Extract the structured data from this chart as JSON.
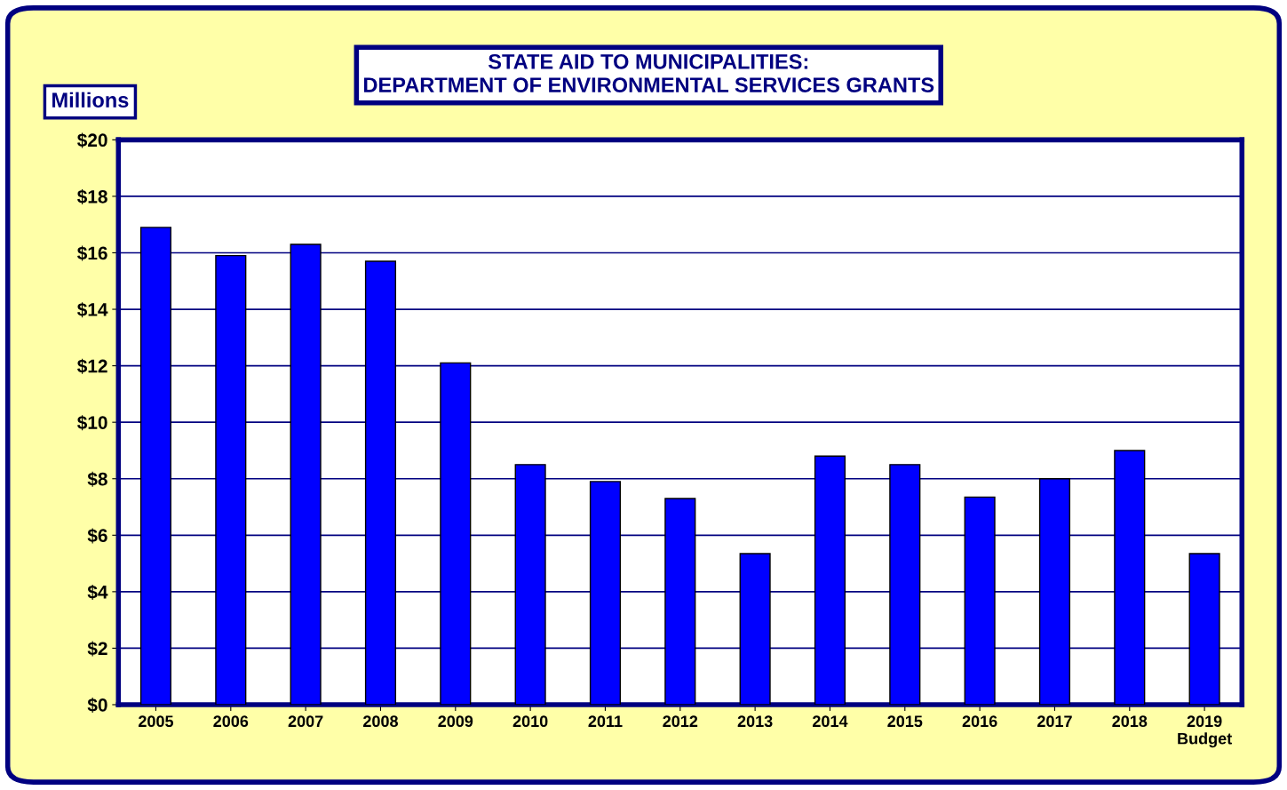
{
  "chart_data": {
    "type": "bar",
    "title": "STATE AID TO MUNICIPALITIES:\nDEPARTMENT OF ENVIRONMENTAL SERVICES GRANTS",
    "ylabel": "Millions",
    "categories": [
      "2005",
      "2006",
      "2007",
      "2008",
      "2009",
      "2010",
      "2011",
      "2012",
      "2013",
      "2014",
      "2015",
      "2016",
      "2017",
      "2018",
      "2019\nBudget"
    ],
    "values": [
      16.9,
      15.9,
      16.3,
      15.7,
      12.1,
      8.5,
      7.9,
      7.3,
      5.35,
      8.8,
      8.5,
      7.35,
      8.0,
      9.0,
      5.35
    ],
    "color": "#0000ff",
    "ylim": [
      0,
      20
    ],
    "yticks": [
      {
        "value": 0,
        "label": "$0"
      },
      {
        "value": 2,
        "label": "$2"
      },
      {
        "value": 4,
        "label": "$4"
      },
      {
        "value": 6,
        "label": "$6"
      },
      {
        "value": 8,
        "label": "$8"
      },
      {
        "value": 10,
        "label": "$10"
      },
      {
        "value": 12,
        "label": "$12"
      },
      {
        "value": 14,
        "label": "$14"
      },
      {
        "value": 16,
        "label": "$16"
      },
      {
        "value": 18,
        "label": "$18"
      },
      {
        "value": 20,
        "label": "$20"
      }
    ],
    "grid": "y"
  }
}
